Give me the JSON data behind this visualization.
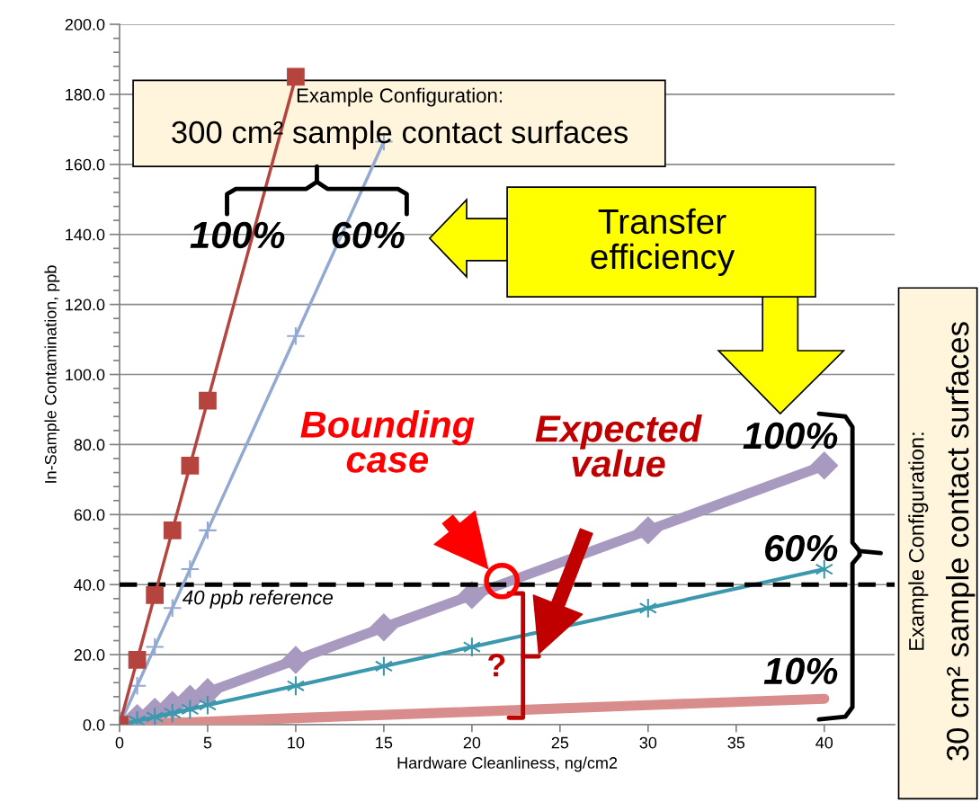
{
  "chart_data": {
    "type": "line",
    "xlabel": "Hardware Cleanliness, ng/cm2",
    "ylabel": "In-Sample Contamination, ppb",
    "xlim": [
      0,
      44
    ],
    "xticks": [
      0,
      5,
      10,
      15,
      20,
      25,
      30,
      35,
      40
    ],
    "ylim": [
      0,
      200
    ],
    "yticks": [
      {
        "value": 0,
        "label": "0.0"
      },
      {
        "value": 20,
        "label": "20.0"
      },
      {
        "value": 40,
        "label": "40.0"
      },
      {
        "value": 60,
        "label": "60.0"
      },
      {
        "value": 80,
        "label": "80.0"
      },
      {
        "value": 100,
        "label": "100.0"
      },
      {
        "value": 120,
        "label": "120.0"
      },
      {
        "value": 140,
        "label": "140.0"
      },
      {
        "value": 160,
        "label": "160.0"
      },
      {
        "value": 180,
        "label": "180.0"
      },
      {
        "value": 200,
        "label": "200.0"
      }
    ],
    "grid": "y",
    "line_style": "solid",
    "series": [
      {
        "color": "#b5443f",
        "marker": "square",
        "x": [
          0,
          1,
          2,
          3,
          4,
          5,
          10
        ],
        "values": [
          0,
          18.5,
          37,
          55.5,
          74,
          92.5,
          185
        ]
      },
      {
        "color": "#92aad1",
        "marker": "cross",
        "x": [
          0,
          1,
          2,
          3,
          4,
          5,
          10,
          15
        ],
        "values": [
          0,
          11.1,
          22.2,
          33.3,
          44.4,
          55.5,
          111,
          166.5
        ]
      },
      {
        "color": "#a899c0",
        "marker": "diamond",
        "x": [
          0,
          1,
          2,
          3,
          4,
          5,
          10,
          15,
          20,
          30,
          40
        ],
        "values": [
          0,
          1.9,
          3.7,
          5.6,
          7.4,
          9.3,
          18.5,
          27.8,
          37,
          55.5,
          74
        ]
      },
      {
        "color": "#3c98ac",
        "marker": "cross",
        "x": [
          0,
          1,
          2,
          3,
          4,
          5,
          10,
          15,
          20,
          30,
          40
        ],
        "values": [
          0,
          1.1,
          2.2,
          3.3,
          4.4,
          5.6,
          11.1,
          16.7,
          22.2,
          33.3,
          44.4
        ]
      },
      {
        "color": "#d98c8c",
        "marker": "none",
        "x": [
          0,
          2,
          3,
          4,
          5,
          10,
          15,
          20,
          30,
          40
        ],
        "values": [
          0,
          0.4,
          0.6,
          0.7,
          0.9,
          1.9,
          2.8,
          3.7,
          5.6,
          7.4
        ]
      }
    ],
    "ref_lines": [
      {
        "axis": "y",
        "value": 40,
        "label": "40 ppb reference",
        "color": "#000000",
        "line_style": "dashed"
      }
    ],
    "annotations": [
      "Example Configuration:",
      "300 cm² sample contact surfaces",
      "Transfer\nefficiency",
      "Bounding\ncase",
      "Expected\nvalue",
      "?",
      "Example Configuration:",
      "30 cm² sample contact surfaces",
      "100%",
      "60%",
      "100%",
      "60%",
      "10%"
    ]
  }
}
